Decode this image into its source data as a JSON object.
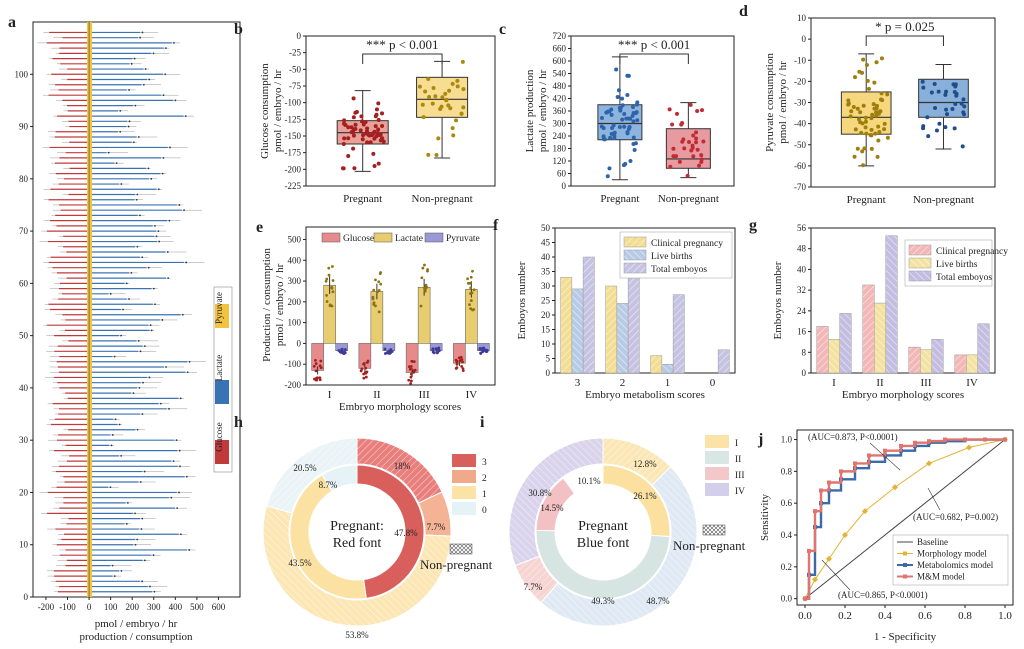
{
  "colors": {
    "glucose": "#c0393b",
    "lactate": "#3a73b5",
    "pyruvate": "#f3c340",
    "pregnantBox": "#efcf76",
    "nonPregBox": "#f0dc9e",
    "lactBoxA": "#7aa6d6",
    "lactBoxB": "#e59196",
    "pyruBoxA": "#f6d77d",
    "pyruBoxB": "#6e9ccc",
    "clinical": "#f3dd92",
    "live": "#b7cbe6",
    "total": "#c6c2e2",
    "clinicalG": "#f3b7b7",
    "liveG": "#f3e2a1",
    "totalG": "#c3bde2",
    "donut3": "#d95f5d",
    "donut2": "#f0a98a",
    "donut1": "#fbe3a8",
    "donut0": "#e5f2f6",
    "ring1": "#fbe3a8",
    "ring2": "#d9e6e4",
    "ring3": "#f4c6c8",
    "ring4": "#cfcbe6",
    "baseline": "#444444",
    "morph": "#eab632",
    "metab": "#3a73b5",
    "mm": "#e0706a"
  },
  "chart_data": [
    {
      "id": "a",
      "type": "bar",
      "panel_label": "a",
      "title": "",
      "xlabel": "pmol / embryo / hr",
      "xlabel2": "production /  consumption",
      "xticks": [
        "-200",
        "-100",
        "0",
        "100",
        "200",
        "300",
        "400",
        "500",
        "600"
      ],
      "xlim": [
        -260,
        700
      ],
      "yticks": [
        "0",
        "10",
        "20",
        "30",
        "40",
        "50",
        "60",
        "70",
        "80",
        "90",
        "100"
      ],
      "ylim": [
        0,
        110
      ],
      "legend": [
        "Pyruvate",
        "Lactate",
        "Glucose"
      ],
      "series": [
        {
          "name": "Glucose",
          "approx_range": [
            -220,
            -80
          ]
        },
        {
          "name": "Pyruvate",
          "approx_range": [
            -50,
            -20
          ]
        },
        {
          "name": "Lactate",
          "approx_range": [
            80,
            550
          ]
        }
      ]
    },
    {
      "id": "b",
      "type": "box",
      "panel_label": "b",
      "ylabel": "Glucose consumption",
      "ylabel2": "pmol / embryo / hr",
      "categories": [
        "Pregnant",
        "Non-pregnant"
      ],
      "yticks": [
        "0",
        "-25",
        "-50",
        "-75",
        "-100",
        "-125",
        "-150",
        "-175",
        "-200",
        "-225"
      ],
      "ylim": [
        -225,
        0
      ],
      "significance": "*** p < 0.001",
      "boxes": [
        {
          "min": -203,
          "q1": -162,
          "median": -145,
          "q3": -127,
          "max": -82
        },
        {
          "min": -183,
          "q1": -122,
          "median": -95,
          "q3": -62,
          "max": -38
        }
      ]
    },
    {
      "id": "c",
      "type": "box",
      "panel_label": "c",
      "ylabel": "Lactate production",
      "ylabel2": "pmol / embryo / hr",
      "categories": [
        "Pregnant",
        "Non-pregnant"
      ],
      "yticks": [
        "0",
        "60",
        "120",
        "180",
        "240",
        "300",
        "360",
        "420",
        "480",
        "540",
        "600",
        "660",
        "720"
      ],
      "ylim": [
        0,
        720
      ],
      "significance": "*** p < 0.001",
      "boxes": [
        {
          "min": 30,
          "q1": 222,
          "median": 300,
          "q3": 390,
          "max": 620
        },
        {
          "min": 40,
          "q1": 85,
          "median": 130,
          "q3": 275,
          "max": 400
        }
      ]
    },
    {
      "id": "d",
      "type": "box",
      "panel_label": "d",
      "ylabel": "Pyruvate consumption",
      "ylabel2": "pmol / embryo / hr",
      "categories": [
        "Pregnant",
        "Non-pregnant"
      ],
      "yticks": [
        "10",
        "0",
        "-10",
        "-20",
        "-30",
        "-40",
        "-50",
        "-60",
        "-70"
      ],
      "ylim": [
        -70,
        10
      ],
      "significance": "* p = 0.025",
      "boxes": [
        {
          "min": -60,
          "q1": -45,
          "median": -37,
          "q3": -25,
          "max": -7
        },
        {
          "min": -52,
          "q1": -37,
          "median": -30,
          "q3": -19,
          "max": -12
        }
      ]
    },
    {
      "id": "e",
      "type": "bar",
      "panel_label": "e",
      "ylabel": "Production /  consumption",
      "ylabel2": "pmol / embryo / hr",
      "xlabel": "Embryo morphology scores",
      "categories": [
        "I",
        "II",
        "III",
        "IV"
      ],
      "yticks": [
        "500",
        "400",
        "300",
        "200",
        "100",
        "0",
        "-100",
        "-200"
      ],
      "ylim": [
        -200,
        560
      ],
      "series": [
        {
          "name": "Glucose",
          "values": [
            -130,
            -120,
            -140,
            -95
          ]
        },
        {
          "name": "Lactate",
          "values": [
            280,
            250,
            270,
            260
          ]
        },
        {
          "name": "Pyruvate",
          "values": [
            -35,
            -35,
            -35,
            -35
          ]
        }
      ]
    },
    {
      "id": "f",
      "type": "bar",
      "panel_label": "f",
      "ylabel": "Emboyos number",
      "xlabel": "Embryo metabolism scores",
      "categories": [
        "3",
        "2",
        "1",
        "0"
      ],
      "yticks": [
        "0",
        "5",
        "10",
        "15",
        "20",
        "25",
        "30",
        "35",
        "40",
        "45",
        "50"
      ],
      "ylim": [
        0,
        50
      ],
      "series": [
        {
          "name": "Clinical pregnancy",
          "values": [
            33,
            30,
            6,
            0
          ]
        },
        {
          "name": "Live births",
          "values": [
            29,
            24,
            3,
            0
          ]
        },
        {
          "name": "Total emboyos",
          "values": [
            40,
            33,
            27,
            8
          ]
        }
      ]
    },
    {
      "id": "g",
      "type": "bar",
      "panel_label": "g",
      "ylabel": "Emboyos number",
      "xlabel": "Embryo morphology scores",
      "categories": [
        "I",
        "II",
        "III",
        "IV"
      ],
      "yticks": [
        "0",
        "8",
        "16",
        "24",
        "32",
        "40",
        "48",
        "56"
      ],
      "ylim": [
        0,
        56
      ],
      "series": [
        {
          "name": "Clinical pregnancy",
          "values": [
            18,
            34,
            10,
            7
          ]
        },
        {
          "name": "Live births",
          "values": [
            13,
            27,
            9,
            7
          ]
        },
        {
          "name": "Total emboyos",
          "values": [
            23,
            53,
            13,
            19
          ]
        }
      ]
    },
    {
      "id": "h",
      "type": "pie",
      "panel_label": "h",
      "center_text": [
        "Pregnant:",
        "Red font"
      ],
      "outer_label": "Non-pregnant",
      "legend": [
        "3",
        "2",
        "1",
        "0"
      ],
      "inner_ring": [
        {
          "label": "3",
          "value": 47.8,
          "text": "47.8%"
        },
        {
          "label": "2",
          "value": 0,
          "text": ""
        },
        {
          "label": "1",
          "value": 43.5,
          "text": "43.5%"
        },
        {
          "label": "0",
          "value": 8.7,
          "text": "8.7%"
        }
      ],
      "outer_ring": [
        {
          "label": "3",
          "value": 18,
          "text": "18%"
        },
        {
          "label": "2",
          "value": 7.7,
          "text": "7.7%"
        },
        {
          "label": "1",
          "value": 53.8,
          "text": "53.8%"
        },
        {
          "label": "0",
          "value": 20.5,
          "text": "20.5%"
        }
      ]
    },
    {
      "id": "i",
      "type": "pie",
      "panel_label": "i",
      "center_text": [
        "Pregnant",
        "Blue font"
      ],
      "outer_label": "Non-pregnant",
      "legend": [
        "I",
        "II",
        "III",
        "IV"
      ],
      "inner_ring": [
        {
          "label": "I",
          "value": 26.1,
          "text": "26.1%"
        },
        {
          "label": "II",
          "value": 49.3,
          "text": "49.3%"
        },
        {
          "label": "III",
          "value": 14.5,
          "text": "14.5%"
        },
        {
          "label": "IV",
          "value": 10.1,
          "text": "10.1%"
        }
      ],
      "outer_ring": [
        {
          "label": "I",
          "value": 12.8,
          "text": "12.8%"
        },
        {
          "label": "II",
          "value": 48.7,
          "text": "48.7%"
        },
        {
          "label": "III",
          "value": 7.7,
          "text": "7.7%"
        },
        {
          "label": "IV",
          "value": 30.8,
          "text": "30.8%"
        }
      ]
    },
    {
      "id": "j",
      "type": "line",
      "panel_label": "j",
      "xlabel": "1 - Specificity",
      "ylabel": "Sensitivity",
      "xticks": [
        "0.0",
        "0.2",
        "0.4",
        "0.6",
        "0.8",
        "1.0"
      ],
      "yticks": [
        "0.0",
        "0.2",
        "0.4",
        "0.6",
        "0.8",
        "1.0"
      ],
      "xlim": [
        -0.04,
        1.04
      ],
      "ylim": [
        -0.04,
        1.06
      ],
      "annotations": [
        "(AUC=0.873, P<0.0001)",
        "(AUC=0.682, P=0.002)",
        "(AUC=0.865, P<0.0001)"
      ],
      "series": [
        {
          "name": "Baseline",
          "x": [
            0,
            1
          ],
          "y": [
            0,
            1
          ]
        },
        {
          "name": "Morphology model",
          "x": [
            0,
            0.05,
            0.12,
            0.2,
            0.3,
            0.45,
            0.62,
            0.82,
            1
          ],
          "y": [
            0,
            0.12,
            0.25,
            0.4,
            0.55,
            0.7,
            0.85,
            0.95,
            1
          ]
        },
        {
          "name": "Metabolomics model",
          "x": [
            0,
            0.02,
            0.05,
            0.08,
            0.12,
            0.18,
            0.25,
            0.32,
            0.4,
            0.48,
            0.55,
            0.62,
            0.7,
            0.8,
            0.9,
            1
          ],
          "y": [
            0,
            0.15,
            0.45,
            0.6,
            0.68,
            0.75,
            0.82,
            0.86,
            0.9,
            0.93,
            0.96,
            0.98,
            0.99,
            1,
            1,
            1
          ]
        },
        {
          "name": "M&M model",
          "x": [
            0,
            0.02,
            0.05,
            0.08,
            0.12,
            0.18,
            0.25,
            0.32,
            0.4,
            0.48,
            0.55,
            0.62,
            0.7,
            0.8,
            0.9,
            1
          ],
          "y": [
            0,
            0.3,
            0.55,
            0.68,
            0.73,
            0.8,
            0.85,
            0.9,
            0.93,
            0.96,
            0.98,
            0.99,
            1,
            1,
            1,
            1
          ]
        }
      ]
    }
  ]
}
